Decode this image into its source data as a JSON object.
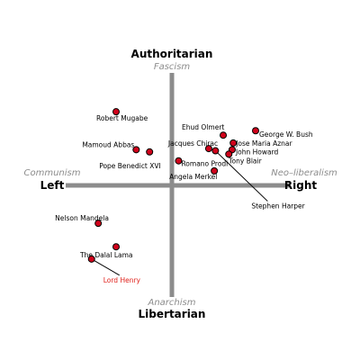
{
  "chart_data": {
    "type": "scatter",
    "xlim": [
      -10,
      10
    ],
    "ylim": [
      -10,
      10
    ],
    "grid": false,
    "axes": {
      "top": {
        "label": "Authoritarian",
        "sublabel": "Fascism"
      },
      "bottom": {
        "label": "Libertarian",
        "sublabel": "Anarchism"
      },
      "left": {
        "label": "Left",
        "sublabel": "Communism"
      },
      "right": {
        "label": "Right",
        "sublabel": "Neo–liberalism"
      }
    },
    "points": [
      {
        "label": "Robert Mugabe",
        "x": -5.0,
        "y": 6.6,
        "color": "#d0021b"
      },
      {
        "label": "Mamoud Abbas",
        "x": -3.2,
        "y": 3.2,
        "color": "#d0021b"
      },
      {
        "label": "Pope Benedict XVI",
        "x": -2.0,
        "y": 3.0,
        "color": "#d0021b"
      },
      {
        "label": "Ehud Olmert",
        "x": 4.6,
        "y": 4.5,
        "color": "#d0021b"
      },
      {
        "label": "George W. Bush",
        "x": 7.5,
        "y": 4.9,
        "color": "#d0021b"
      },
      {
        "label": "Jose Maria Aznar",
        "x": 5.5,
        "y": 3.8,
        "color": "#d0021b"
      },
      {
        "label": "John Howard",
        "x": 5.4,
        "y": 3.2,
        "color": "#d0021b"
      },
      {
        "label": "Tony Blair",
        "x": 5.1,
        "y": 2.8,
        "color": "#d0021b"
      },
      {
        "label": "Jacques Chirac",
        "x": 3.3,
        "y": 3.3,
        "color": "#d0021b"
      },
      {
        "label": "Romano Prodi",
        "x": 0.6,
        "y": 2.2,
        "color": "#d0021b"
      },
      {
        "label": "Stephen Harper",
        "x": 3.9,
        "y": 3.1,
        "color": "#d0021b"
      },
      {
        "label": "Angela Merkel",
        "x": 3.8,
        "y": 1.3,
        "color": "#d0021b"
      },
      {
        "label": "Nelson Mandela",
        "x": -6.6,
        "y": -3.4,
        "color": "#d0021b"
      },
      {
        "label": "The Dalal Lama",
        "x": -5.0,
        "y": -5.5,
        "color": "#d0021b"
      },
      {
        "label": "Lord Henry",
        "x": -7.2,
        "y": -6.6,
        "color": "#d0021b",
        "highlight": true
      }
    ]
  }
}
